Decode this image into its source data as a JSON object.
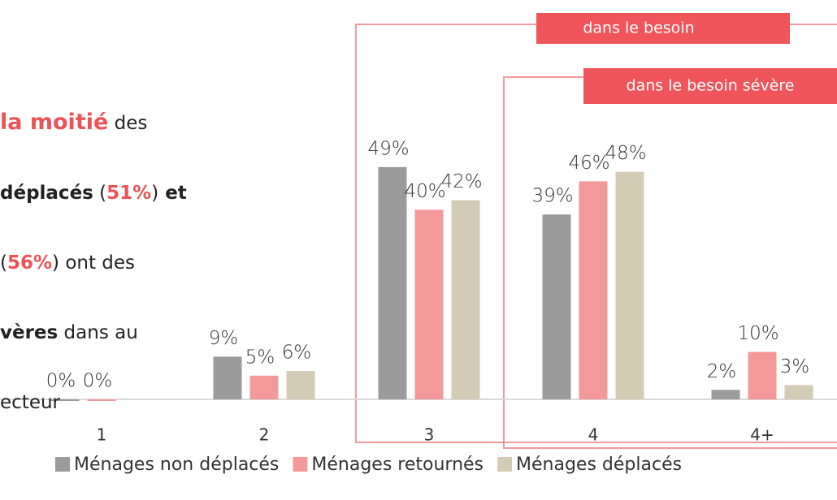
{
  "chart_data": {
    "type": "bar",
    "categories": [
      "1",
      "2",
      "3",
      "4",
      "4+"
    ],
    "series": [
      {
        "name": "Ménages non déplacés",
        "color": "#9b9b9b",
        "values": [
          0,
          9,
          49,
          39,
          2
        ],
        "value_labels": [
          "0%",
          "9%",
          "49%",
          "39%",
          "2%"
        ]
      },
      {
        "name": "Ménages retournés",
        "color": "#f4999a",
        "values": [
          0,
          5,
          40,
          46,
          10
        ],
        "value_labels": [
          "0%",
          "5%",
          "40%",
          "46%",
          "10%"
        ]
      },
      {
        "name": "Ménages déplacés",
        "color": "#d4cbb5",
        "values": [
          null,
          6,
          42,
          48,
          3
        ],
        "value_labels": [
          null,
          "6%",
          "42%",
          "48%",
          "3%"
        ]
      }
    ],
    "boxes": [
      {
        "label": "dans le besoin",
        "color": "#f0555b"
      },
      {
        "label": "dans le besoin sévère",
        "color": "#f0555b"
      }
    ],
    "annotation": [
      [
        "la moitié",
        " des"
      ],
      [
        "déplacés",
        " (",
        "51%",
        ")",
        " et"
      ],
      [
        "(",
        "56%",
        ") ont des"
      ],
      [
        "vères",
        " dans au"
      ],
      [
        "ecteur"
      ]
    ]
  }
}
